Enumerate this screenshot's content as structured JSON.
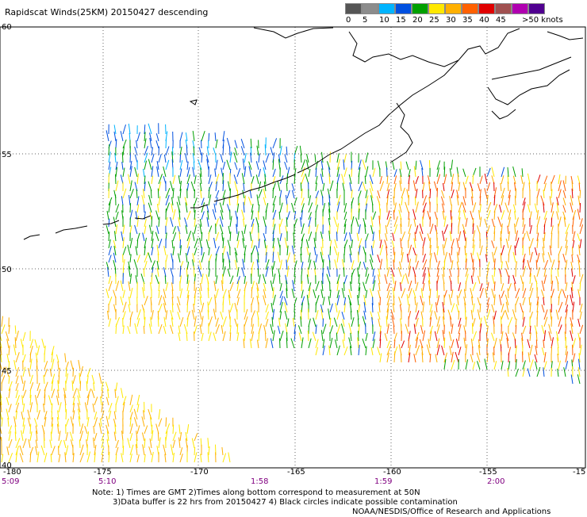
{
  "title": "Rapidscat Winds(25KM) 20150427 descending",
  "colorbar": {
    "colors": [
      "#555555",
      "#8c8c8c",
      "#00b4ff",
      "#0050e0",
      "#00a000",
      "#ffe800",
      "#ffb000",
      "#ff6000",
      "#e00000",
      "#a05050",
      "#b000b0",
      "#500090"
    ],
    "labels": [
      "0",
      "5",
      "10",
      "15",
      "20",
      "25",
      "30",
      "35",
      "40",
      "45",
      ">50 knots"
    ]
  },
  "lat_labels": [
    "60",
    "55",
    "50",
    "45",
    "40"
  ],
  "lon_labels": [
    "-180",
    "-175",
    "-170",
    "-165",
    "-160",
    "-155",
    "-15"
  ],
  "time_labels": [
    "5:09",
    "5:10",
    "1:58",
    "1:59",
    "2:00"
  ],
  "notes": {
    "line1": "Note: 1) Times are GMT 2)Times along bottom correspond to measurement at 50N",
    "line2": "3)Data buffer is 22 hrs from 20150427 4) Black circles indicate possible contamination",
    "line3": "NOAA/NESDIS/Office of Research and Applications"
  }
}
